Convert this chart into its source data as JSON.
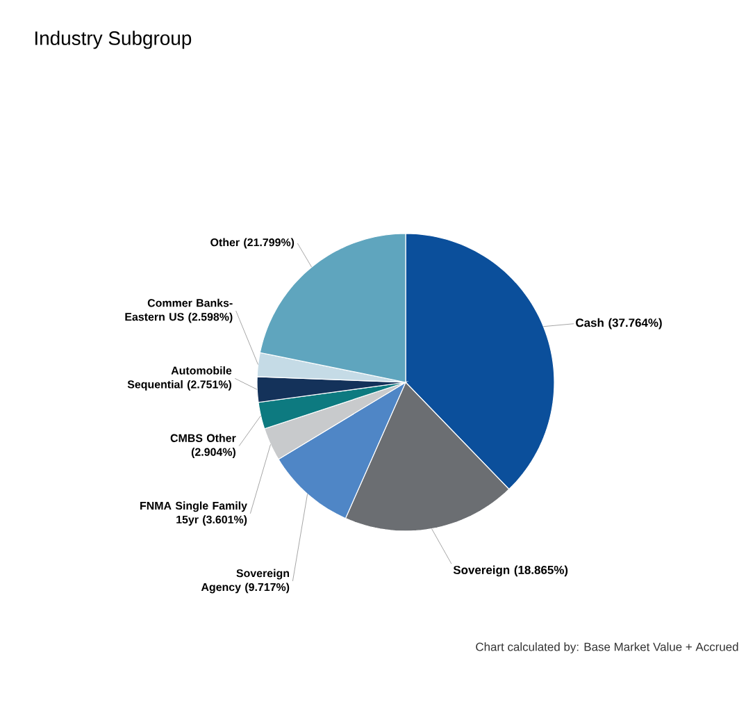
{
  "chart_data": {
    "type": "pie",
    "title": "Industry Subgroup",
    "categories": [
      "Cash",
      "Sovereign",
      "Sovereign Agency",
      "FNMA Single Family 15yr",
      "CMBS Other",
      "Automobile Sequential",
      "Commer Banks-Eastern US",
      "Other"
    ],
    "values": [
      37.764,
      18.865,
      9.717,
      3.601,
      2.904,
      2.751,
      2.598,
      21.799
    ],
    "value_labels": [
      "(37.764%)",
      "(18.865%)",
      "(9.717%)",
      "(3.601%)",
      "(2.904%)",
      "(2.751%)",
      "(2.598%)",
      "(21.799%)"
    ],
    "colors": [
      "#0b4f9b",
      "#6b6e72",
      "#4f86c6",
      "#c8cacc",
      "#0d7a80",
      "#14325a",
      "#c5dbe6",
      "#5fa5be"
    ],
    "annotations": [
      "Chart calculated by: Base Market Value + Accrued"
    ]
  }
}
